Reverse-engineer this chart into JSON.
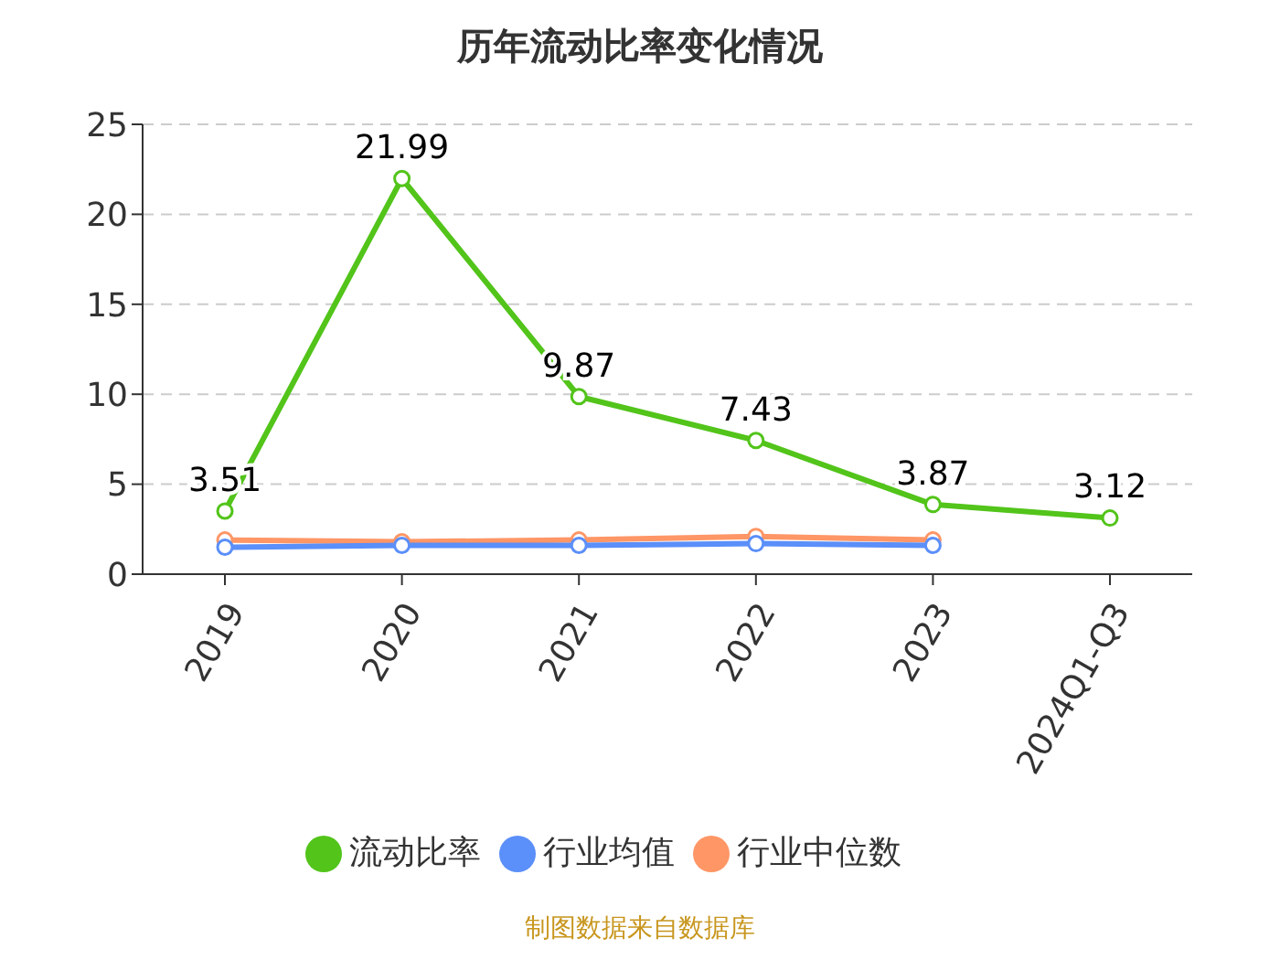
{
  "chart_data": {
    "type": "line",
    "title": "历年流动比率变化情况",
    "categories": [
      "2019",
      "2020",
      "2021",
      "2022",
      "2023",
      "2024Q1-Q3"
    ],
    "series": [
      {
        "name": "流动比率",
        "color": "#52c41a",
        "values": [
          3.51,
          21.99,
          9.87,
          7.43,
          3.87,
          3.12
        ],
        "value_labels": [
          "3.51",
          "21.99",
          "9.87",
          "7.43",
          "3.87",
          "3.12"
        ]
      },
      {
        "name": "行业均值",
        "color": "#5b8ff9",
        "values": [
          1.5,
          1.6,
          1.6,
          1.7,
          1.6,
          null
        ]
      },
      {
        "name": "行业中位数",
        "color": "#ff9666",
        "values": [
          1.9,
          1.8,
          1.9,
          2.1,
          1.9,
          null
        ]
      }
    ],
    "ylim": [
      0,
      25
    ],
    "yticks": [
      0,
      5,
      10,
      15,
      20,
      25
    ],
    "grid": "y",
    "legend": "bottom",
    "marker": "circle",
    "line_style": "solid",
    "annotations": [
      "制图数据来自数据库"
    ]
  }
}
